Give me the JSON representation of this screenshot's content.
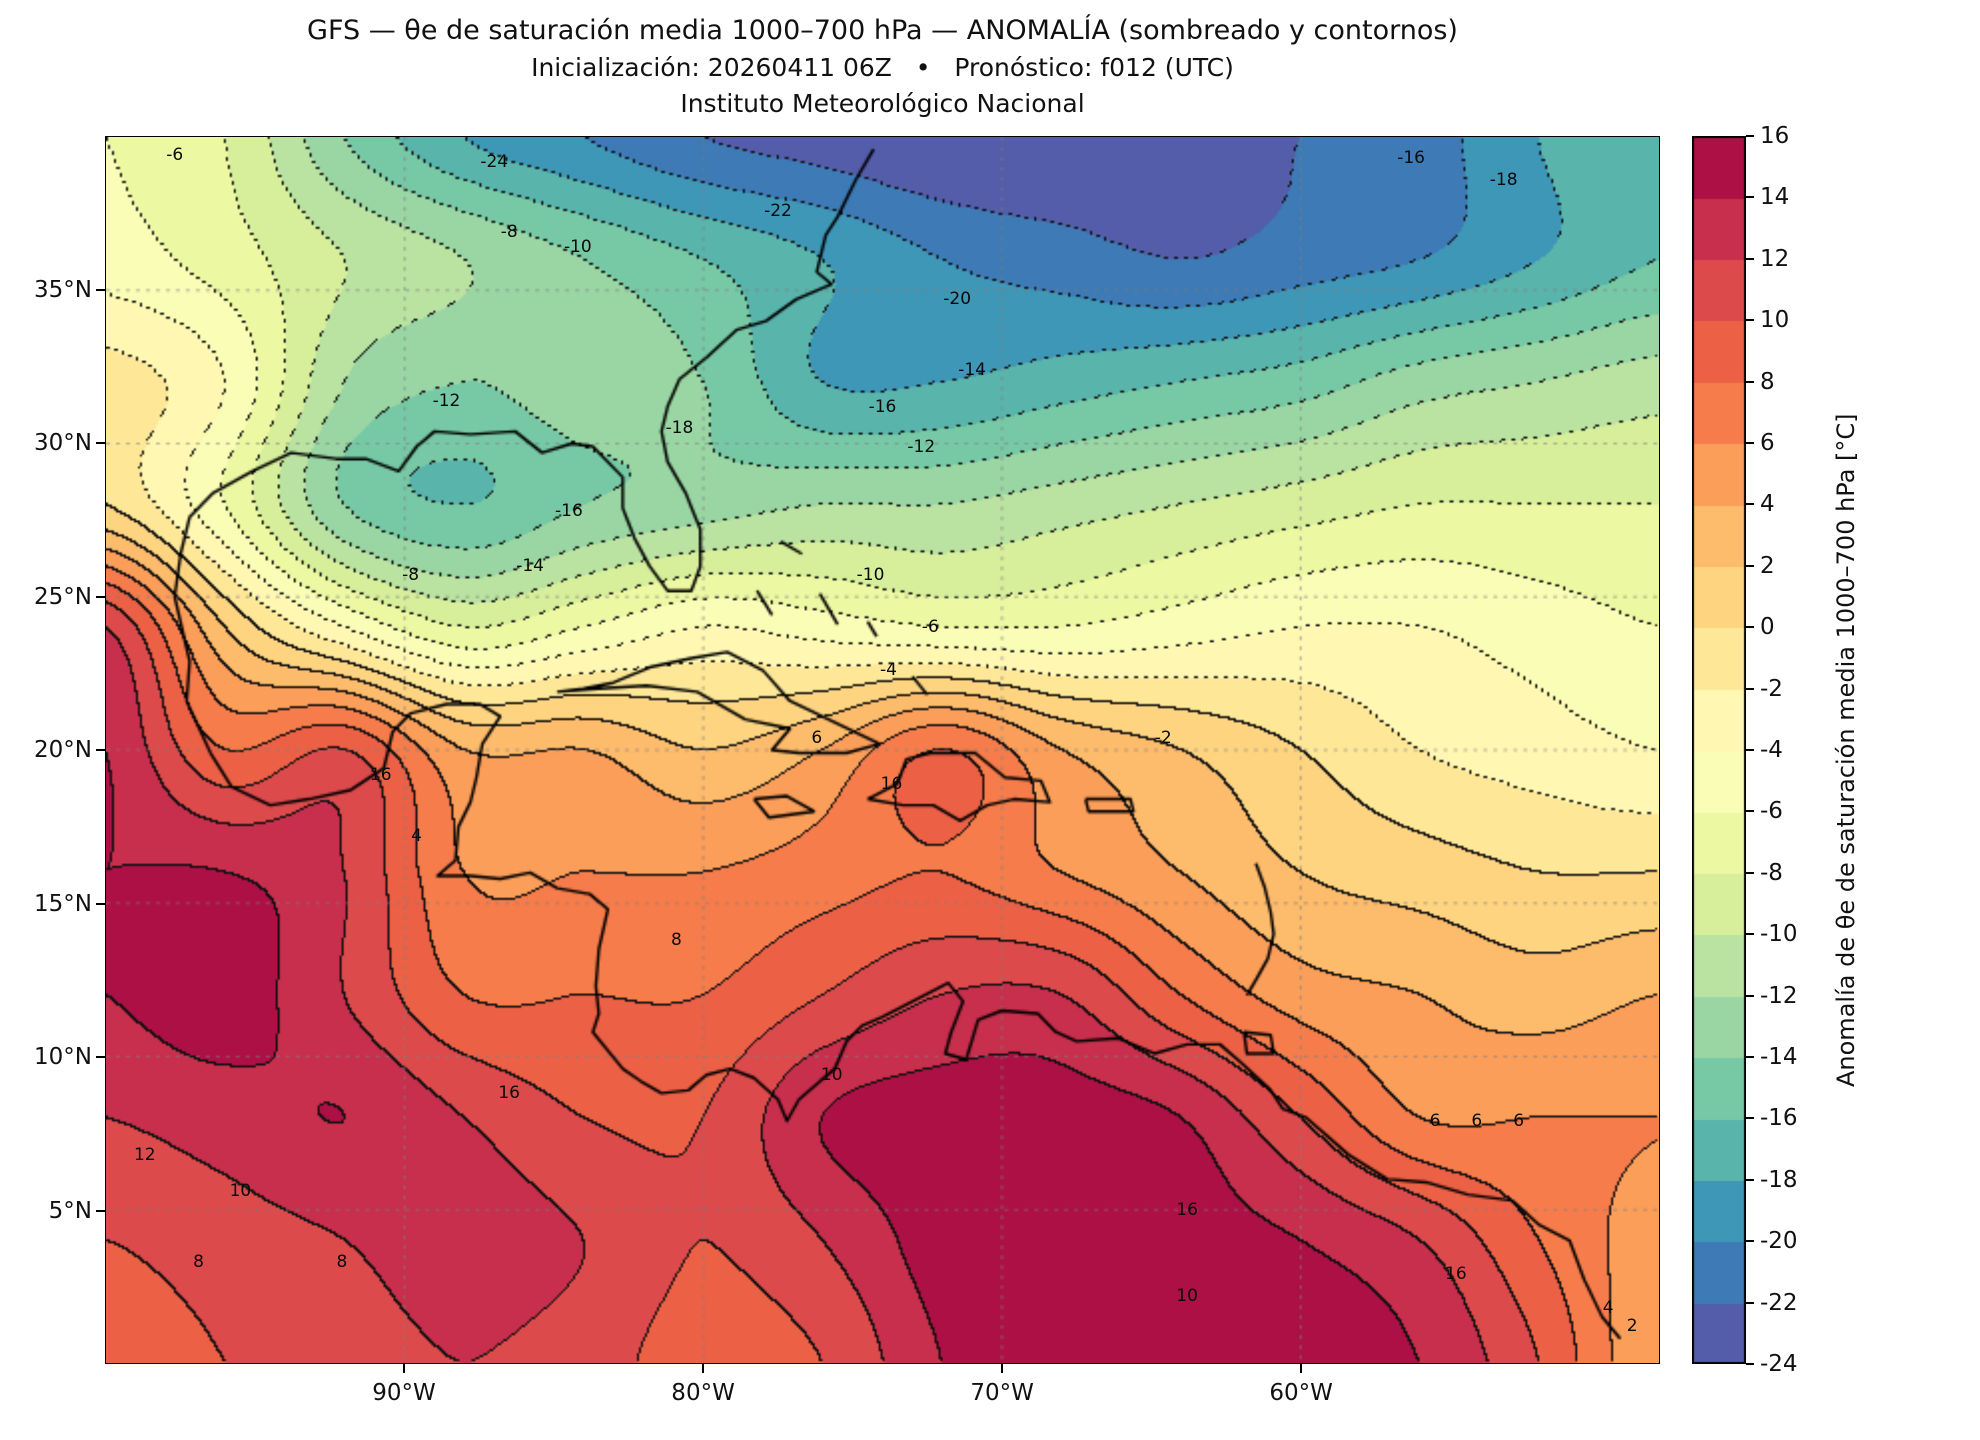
{
  "header": {
    "title": "GFS — θe de saturación media 1000–700 hPa — ANOMALÍA (sombreado y contornos)",
    "subtitle": "Inicialización: 20260411 06Z   •   Pronóstico: f012 (UTC)",
    "institution": "Instituto Meteorológico Nacional"
  },
  "chart_data": {
    "type": "heatmap",
    "title": "GFS — θe de saturación media 1000–700 hPa — ANOMALÍA (sombreado y contornos)",
    "subtitle": "Inicialización: 20260411 06Z • Pronóstico: f012 (UTC)",
    "source": "Instituto Meteorológico Nacional",
    "units": "°C",
    "domain": {
      "lon_min": -100,
      "lon_max": -48,
      "lat_min": 0,
      "lat_max": 40
    },
    "xticks": [
      {
        "value": -90,
        "label": "90°W"
      },
      {
        "value": -80,
        "label": "80°W"
      },
      {
        "value": -70,
        "label": "70°W"
      },
      {
        "value": -60,
        "label": "60°W"
      }
    ],
    "yticks": [
      {
        "value": 35,
        "label": "35°N"
      },
      {
        "value": 30,
        "label": "30°N"
      },
      {
        "value": 25,
        "label": "25°N"
      },
      {
        "value": 20,
        "label": "20°N"
      },
      {
        "value": 15,
        "label": "15°N"
      },
      {
        "value": 10,
        "label": "10°N"
      },
      {
        "value": 5,
        "label": "5°N"
      }
    ],
    "colorbar": {
      "label": "Anomalía de θe de saturación media 1000–700 hPa [°C]",
      "min": -24,
      "max": 16,
      "step": 2,
      "ticks": [
        16,
        14,
        12,
        10,
        8,
        6,
        4,
        2,
        0,
        -2,
        -4,
        -6,
        -8,
        -10,
        -12,
        -14,
        -16,
        -18,
        -20,
        -22,
        -24
      ]
    },
    "colormap": {
      "name": "Spectral_r",
      "anchors_low_to_high": [
        "#5e4fa2",
        "#3288bd",
        "#66c2a5",
        "#abdda4",
        "#e6f598",
        "#ffffbf",
        "#fee08b",
        "#fdae61",
        "#f46d43",
        "#d53e4f",
        "#9e0142"
      ]
    },
    "contour_interval": 2,
    "negative_contours_dotted": true,
    "grid": {
      "lons": [
        -100,
        -96,
        -92,
        -88,
        -84,
        -80,
        -76,
        -72,
        -68,
        -64,
        -60,
        -56,
        -52,
        -48
      ],
      "lats": [
        0,
        4,
        8,
        12,
        16,
        20,
        24,
        28,
        32,
        36,
        40
      ],
      "anomaly_c": [
        [
          9,
          10,
          11,
          12,
          11,
          9,
          10,
          14,
          16,
          16,
          15,
          14,
          10,
          4
        ],
        [
          10,
          11,
          12,
          13,
          12,
          10,
          12,
          15,
          16,
          15,
          14,
          12,
          8,
          5
        ],
        [
          12,
          13,
          14,
          12,
          10,
          10,
          14,
          15,
          15,
          14,
          10,
          6,
          6,
          6
        ],
        [
          14,
          15,
          12,
          8,
          8,
          8,
          10,
          12,
          12,
          8,
          5,
          4,
          3,
          4
        ],
        [
          14,
          14,
          12,
          6,
          6,
          6,
          7,
          8,
          6,
          4,
          2,
          1,
          0,
          0
        ],
        [
          14,
          8,
          10,
          4,
          4,
          2,
          4,
          8,
          4,
          2,
          0,
          -2,
          -3,
          -4
        ],
        [
          12,
          2,
          -4,
          -8,
          -6,
          -4,
          -5,
          -6,
          -6,
          -5,
          -4,
          -4,
          -5,
          -6
        ],
        [
          0,
          -6,
          -14,
          -16,
          -14,
          -13,
          -12,
          -12,
          -11,
          -10,
          -9,
          -8,
          -8,
          -8
        ],
        [
          -1,
          -4,
          -12,
          -14,
          -13,
          -14,
          -18,
          -18,
          -17,
          -16,
          -15,
          -13,
          -12,
          -11
        ],
        [
          -5,
          -7,
          -10,
          -12,
          -14,
          -16,
          -18,
          -20,
          -21,
          -22,
          -21,
          -20,
          -18,
          -16
        ],
        [
          -6,
          -8,
          -14,
          -18,
          -20,
          -22,
          -23,
          -24,
          -24,
          -23,
          -22,
          -21,
          -18,
          -16
        ]
      ]
    },
    "contour_labels": [
      {
        "value": -24,
        "lon": -87.0,
        "lat": 39.2
      },
      {
        "value": -22,
        "lon": -77.5,
        "lat": 37.6
      },
      {
        "value": -20,
        "lon": -71.5,
        "lat": 34.7
      },
      {
        "value": -18,
        "lon": -80.8,
        "lat": 30.5
      },
      {
        "value": -18,
        "lon": -53.2,
        "lat": 38.6
      },
      {
        "value": -16,
        "lon": -84.5,
        "lat": 27.8
      },
      {
        "value": -16,
        "lon": -74.0,
        "lat": 31.2
      },
      {
        "value": -16,
        "lon": -56.3,
        "lat": 39.3
      },
      {
        "value": -14,
        "lon": -85.8,
        "lat": 26.0
      },
      {
        "value": -14,
        "lon": -71.0,
        "lat": 32.4
      },
      {
        "value": -12,
        "lon": -88.6,
        "lat": 31.4
      },
      {
        "value": -12,
        "lon": -72.7,
        "lat": 29.9
      },
      {
        "value": -10,
        "lon": -84.2,
        "lat": 36.4
      },
      {
        "value": -10,
        "lon": -74.4,
        "lat": 25.7
      },
      {
        "value": -8,
        "lon": -86.5,
        "lat": 36.9
      },
      {
        "value": -8,
        "lon": -89.8,
        "lat": 25.7
      },
      {
        "value": -6,
        "lon": -97.7,
        "lat": 39.4
      },
      {
        "value": -6,
        "lon": -72.4,
        "lat": 24.0
      },
      {
        "value": -4,
        "lon": -73.8,
        "lat": 22.6
      },
      {
        "value": -2,
        "lon": -64.6,
        "lat": 20.4
      },
      {
        "value": 4,
        "lon": -89.6,
        "lat": 17.2
      },
      {
        "value": 4,
        "lon": -49.7,
        "lat": 1.8
      },
      {
        "value": 2,
        "lon": -48.9,
        "lat": 1.2
      },
      {
        "value": 6,
        "lon": -76.2,
        "lat": 20.4
      },
      {
        "value": 6,
        "lon": -55.5,
        "lat": 7.9
      },
      {
        "value": 6,
        "lon": -54.1,
        "lat": 7.9
      },
      {
        "value": 6,
        "lon": -52.7,
        "lat": 7.9
      },
      {
        "value": 8,
        "lon": -80.9,
        "lat": 13.8
      },
      {
        "value": 8,
        "lon": -92.1,
        "lat": 3.3
      },
      {
        "value": 8,
        "lon": -96.9,
        "lat": 3.3
      },
      {
        "value": 10,
        "lon": -95.5,
        "lat": 5.6
      },
      {
        "value": 10,
        "lon": -75.7,
        "lat": 9.4
      },
      {
        "value": 10,
        "lon": -63.8,
        "lat": 2.2
      },
      {
        "value": 12,
        "lon": -98.7,
        "lat": 6.8
      },
      {
        "value": 16,
        "lon": -90.8,
        "lat": 19.2
      },
      {
        "value": 16,
        "lon": -73.7,
        "lat": 18.9
      },
      {
        "value": 16,
        "lon": -86.5,
        "lat": 8.8
      },
      {
        "value": 16,
        "lon": -63.8,
        "lat": 5.0
      },
      {
        "value": 16,
        "lon": -54.8,
        "lat": 2.9
      }
    ],
    "coastlines": [
      [
        [
          -74.3,
          39.6
        ],
        [
          -74.9,
          38.6
        ],
        [
          -75.5,
          37.4
        ],
        [
          -75.9,
          36.8
        ],
        [
          -76.2,
          35.6
        ],
        [
          -75.7,
          35.2
        ],
        [
          -76.9,
          34.7
        ],
        [
          -77.9,
          34.0
        ],
        [
          -78.9,
          33.7
        ],
        [
          -79.9,
          32.8
        ],
        [
          -80.8,
          32.1
        ],
        [
          -81.2,
          31.2
        ],
        [
          -81.4,
          30.4
        ],
        [
          -81.2,
          29.4
        ],
        [
          -80.6,
          28.4
        ],
        [
          -80.1,
          27.2
        ],
        [
          -80.1,
          26.0
        ],
        [
          -80.4,
          25.2
        ],
        [
          -81.2,
          25.2
        ],
        [
          -81.8,
          26.0
        ],
        [
          -82.3,
          26.9
        ],
        [
          -82.7,
          27.9
        ],
        [
          -82.7,
          28.9
        ],
        [
          -83.7,
          29.9
        ],
        [
          -84.4,
          30.0
        ],
        [
          -85.4,
          29.7
        ],
        [
          -86.3,
          30.4
        ],
        [
          -87.8,
          30.3
        ],
        [
          -89.0,
          30.4
        ],
        [
          -89.6,
          29.9
        ],
        [
          -90.2,
          29.1
        ],
        [
          -91.3,
          29.5
        ],
        [
          -92.3,
          29.5
        ],
        [
          -93.8,
          29.7
        ],
        [
          -95.1,
          29.1
        ],
        [
          -96.4,
          28.4
        ],
        [
          -97.2,
          27.6
        ],
        [
          -97.5,
          26.4
        ],
        [
          -97.7,
          25.0
        ],
        [
          -97.2,
          22.9
        ],
        [
          -97.3,
          21.6
        ],
        [
          -96.5,
          19.9
        ],
        [
          -95.8,
          18.8
        ],
        [
          -94.5,
          18.2
        ],
        [
          -93.2,
          18.4
        ],
        [
          -91.8,
          18.7
        ],
        [
          -90.7,
          19.4
        ],
        [
          -90.4,
          20.6
        ],
        [
          -89.8,
          21.2
        ],
        [
          -88.6,
          21.5
        ],
        [
          -87.5,
          21.5
        ],
        [
          -86.8,
          21.1
        ],
        [
          -87.4,
          20.2
        ],
        [
          -87.6,
          19.1
        ],
        [
          -87.8,
          18.3
        ],
        [
          -88.2,
          17.5
        ],
        [
          -88.3,
          16.4
        ],
        [
          -88.9,
          15.9
        ],
        [
          -87.8,
          15.9
        ],
        [
          -86.8,
          15.8
        ],
        [
          -85.8,
          16.0
        ],
        [
          -84.9,
          15.5
        ],
        [
          -83.8,
          15.3
        ],
        [
          -83.2,
          14.8
        ],
        [
          -83.5,
          13.5
        ],
        [
          -83.6,
          12.3
        ],
        [
          -83.5,
          11.4
        ],
        [
          -83.7,
          10.8
        ],
        [
          -82.7,
          9.6
        ],
        [
          -82.1,
          9.2
        ],
        [
          -81.4,
          8.8
        ],
        [
          -80.5,
          8.9
        ],
        [
          -79.9,
          9.4
        ],
        [
          -79.1,
          9.6
        ],
        [
          -78.3,
          9.3
        ],
        [
          -77.5,
          8.6
        ],
        [
          -77.2,
          7.9
        ],
        [
          -76.8,
          8.6
        ],
        [
          -76.2,
          9.1
        ],
        [
          -75.6,
          9.6
        ],
        [
          -75.2,
          10.5
        ],
        [
          -74.7,
          11.0
        ],
        [
          -74.0,
          11.3
        ],
        [
          -72.8,
          11.9
        ],
        [
          -71.8,
          12.4
        ],
        [
          -71.3,
          11.8
        ],
        [
          -71.7,
          10.8
        ],
        [
          -71.9,
          10.1
        ],
        [
          -71.2,
          9.9
        ],
        [
          -70.8,
          11.2
        ],
        [
          -70.0,
          11.5
        ],
        [
          -68.8,
          11.4
        ],
        [
          -68.2,
          10.8
        ],
        [
          -67.5,
          10.5
        ],
        [
          -66.1,
          10.6
        ],
        [
          -64.9,
          10.1
        ],
        [
          -63.8,
          10.4
        ],
        [
          -62.7,
          10.4
        ],
        [
          -62.0,
          9.8
        ],
        [
          -61.0,
          8.9
        ],
        [
          -60.6,
          8.3
        ],
        [
          -59.8,
          8.0
        ],
        [
          -58.4,
          6.8
        ],
        [
          -57.1,
          6.0
        ],
        [
          -55.8,
          5.9
        ],
        [
          -54.4,
          5.5
        ],
        [
          -52.9,
          5.3
        ],
        [
          -52.0,
          4.5
        ],
        [
          -51.0,
          4.0
        ],
        [
          -50.5,
          2.7
        ],
        [
          -49.9,
          1.5
        ],
        [
          -49.3,
          0.8
        ]
      ],
      [
        [
          -84.9,
          21.9
        ],
        [
          -84.0,
          22.0
        ],
        [
          -83.0,
          22.2
        ],
        [
          -81.8,
          22.7
        ],
        [
          -80.4,
          23.0
        ],
        [
          -79.2,
          23.2
        ],
        [
          -78.0,
          22.6
        ],
        [
          -77.1,
          21.6
        ],
        [
          -75.6,
          20.9
        ],
        [
          -74.1,
          20.2
        ],
        [
          -75.2,
          19.9
        ],
        [
          -76.8,
          19.9
        ],
        [
          -77.7,
          20.0
        ],
        [
          -77.1,
          20.7
        ],
        [
          -78.6,
          21.0
        ],
        [
          -80.2,
          21.9
        ],
        [
          -81.9,
          22.1
        ],
        [
          -83.5,
          22.0
        ],
        [
          -84.9,
          21.9
        ]
      ],
      [
        [
          -74.5,
          18.4
        ],
        [
          -73.3,
          18.2
        ],
        [
          -72.3,
          18.2
        ],
        [
          -71.4,
          17.7
        ],
        [
          -70.5,
          18.2
        ],
        [
          -69.6,
          18.4
        ],
        [
          -68.4,
          18.3
        ],
        [
          -68.7,
          19.0
        ],
        [
          -69.9,
          19.1
        ],
        [
          -70.9,
          19.9
        ],
        [
          -72.4,
          19.9
        ],
        [
          -73.2,
          19.7
        ],
        [
          -73.5,
          18.9
        ],
        [
          -74.5,
          18.4
        ]
      ],
      [
        [
          -78.3,
          18.4
        ],
        [
          -77.2,
          18.5
        ],
        [
          -76.3,
          18.0
        ],
        [
          -77.8,
          17.8
        ],
        [
          -78.3,
          18.4
        ]
      ],
      [
        [
          -67.2,
          18.4
        ],
        [
          -65.7,
          18.4
        ],
        [
          -65.6,
          18.0
        ],
        [
          -67.1,
          18.0
        ],
        [
          -67.2,
          18.4
        ]
      ],
      [
        [
          -78.2,
          25.2
        ],
        [
          -77.7,
          24.4
        ]
      ],
      [
        [
          -77.4,
          26.8
        ],
        [
          -76.7,
          26.4
        ]
      ],
      [
        [
          -76.1,
          25.1
        ],
        [
          -75.5,
          24.1
        ]
      ],
      [
        [
          -73.0,
          22.4
        ],
        [
          -72.5,
          21.8
        ]
      ],
      [
        [
          -74.5,
          24.2
        ],
        [
          -74.2,
          23.7
        ]
      ],
      [
        [
          -61.5,
          16.3
        ],
        [
          -61.2,
          15.5
        ],
        [
          -61.0,
          14.7
        ],
        [
          -60.9,
          14.0
        ],
        [
          -61.1,
          13.2
        ],
        [
          -61.5,
          12.5
        ],
        [
          -61.8,
          12.0
        ]
      ],
      [
        [
          -61.9,
          10.8
        ],
        [
          -61.0,
          10.7
        ],
        [
          -60.9,
          10.1
        ],
        [
          -61.8,
          10.1
        ],
        [
          -61.9,
          10.8
        ]
      ]
    ]
  }
}
